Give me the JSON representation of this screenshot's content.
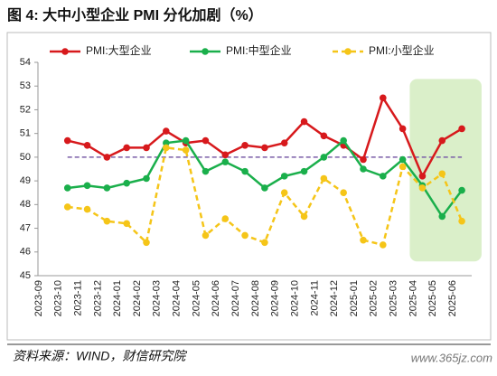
{
  "title": "图 4:   大中小型企业 PMI 分化加剧（%）",
  "source": "资料来源：WIND，财信研究院",
  "watermark": "www.365jz.com",
  "chart_data": {
    "type": "line",
    "categories": [
      "2023-09",
      "2023-10",
      "2023-11",
      "2023-12",
      "2024-01",
      "2024-02",
      "2024-03",
      "2024-04",
      "2024-05",
      "2024-06",
      "2024-07",
      "2024-08",
      "2024-09",
      "2024-10",
      "2024-11",
      "2024-12",
      "2025-01",
      "2025-02",
      "2025-03",
      "2025-04",
      "2025-05",
      "2025-06"
    ],
    "series": [
      {
        "name": "PMI:大型企业",
        "color": "#d7191c",
        "dashed": false,
        "values": [
          null,
          50.7,
          50.5,
          50.0,
          50.4,
          50.4,
          51.1,
          50.6,
          50.7,
          50.1,
          50.5,
          50.4,
          50.6,
          51.5,
          50.9,
          50.5,
          49.9,
          52.5,
          51.2,
          49.2,
          50.7,
          51.2
        ]
      },
      {
        "name": "PMI:中型企业",
        "color": "#1aaf4b",
        "dashed": false,
        "values": [
          null,
          48.7,
          48.8,
          48.7,
          48.9,
          49.1,
          50.6,
          50.7,
          49.4,
          49.8,
          49.4,
          48.7,
          49.2,
          49.4,
          50.0,
          50.7,
          49.5,
          49.2,
          49.9,
          48.8,
          47.5,
          48.6
        ]
      },
      {
        "name": "PMI:小型企业",
        "color": "#f5c518",
        "dashed": true,
        "values": [
          null,
          47.9,
          47.8,
          47.3,
          47.2,
          46.4,
          50.4,
          50.3,
          46.7,
          47.4,
          46.7,
          46.4,
          48.5,
          47.5,
          49.1,
          48.5,
          46.5,
          46.3,
          49.6,
          48.7,
          49.3,
          47.3
        ]
      }
    ],
    "hline": 50,
    "ylim": [
      45,
      54
    ],
    "yticks": [
      45,
      46,
      47,
      48,
      49,
      50,
      51,
      52,
      53,
      54
    ]
  }
}
